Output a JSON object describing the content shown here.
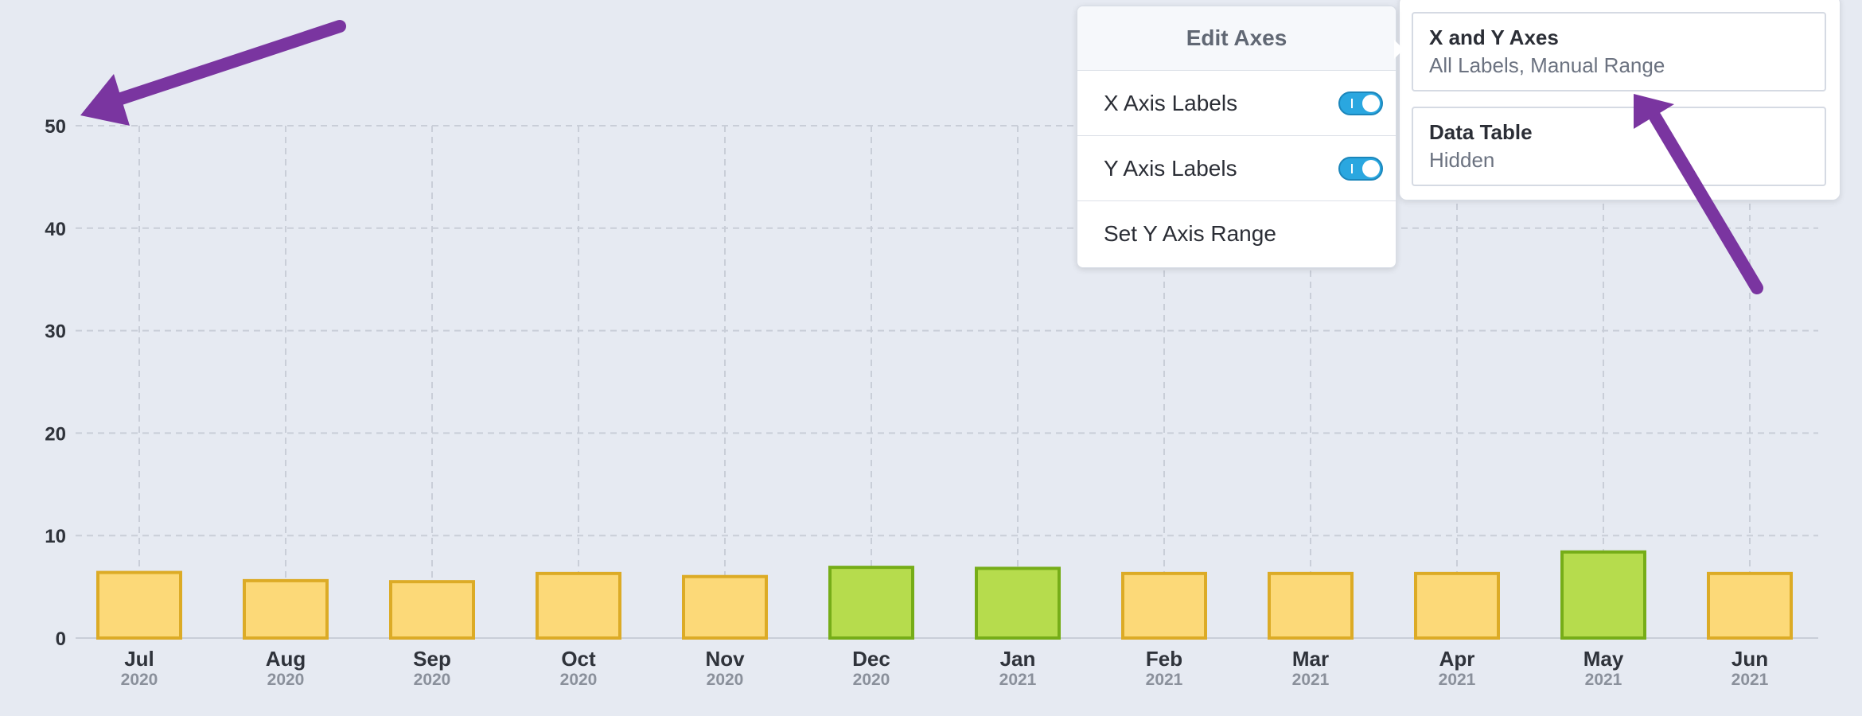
{
  "chart_data": {
    "type": "bar",
    "categories": [
      "Jul",
      "Aug",
      "Sep",
      "Oct",
      "Nov",
      "Dec",
      "Jan",
      "Feb",
      "Mar",
      "Apr",
      "May",
      "Jun"
    ],
    "years": [
      "2020",
      "2020",
      "2020",
      "2020",
      "2020",
      "2020",
      "2021",
      "2021",
      "2021",
      "2021",
      "2021",
      "2021"
    ],
    "values": [
      6.4,
      5.6,
      5.5,
      6.3,
      6.0,
      6.9,
      6.8,
      6.3,
      6.3,
      6.3,
      8.4,
      6.3
    ],
    "bar_colors": [
      "yellow",
      "yellow",
      "yellow",
      "yellow",
      "yellow",
      "green",
      "green",
      "yellow",
      "yellow",
      "yellow",
      "green",
      "yellow"
    ],
    "yticks": [
      "0",
      "10",
      "20",
      "30",
      "40",
      "50"
    ],
    "ylim": [
      0,
      50
    ],
    "grid": true,
    "title": "",
    "xlabel": "",
    "ylabel": ""
  },
  "colors": {
    "yellow_fill": "#fcd978",
    "yellow_stroke": "#dcab26",
    "green_fill": "#b6dc4d",
    "green_stroke": "#76ad18",
    "toggle_on": "#2aa7e0",
    "annotation_arrow": "#7a35a0"
  },
  "edit_axes": {
    "title": "Edit Axes",
    "x_axis_labels": "X Axis Labels",
    "x_axis_labels_on": true,
    "y_axis_labels": "Y Axis Labels",
    "y_axis_labels_on": true,
    "set_y_range": "Set Y Axis Range"
  },
  "settings": {
    "axes_title": "X and Y Axes",
    "axes_value": "All Labels, Manual Range",
    "table_title": "Data Table",
    "table_value": "Hidden"
  },
  "icons": {
    "toggle": "toggle-switch-icon",
    "arrow": "annotation-arrow-icon"
  }
}
